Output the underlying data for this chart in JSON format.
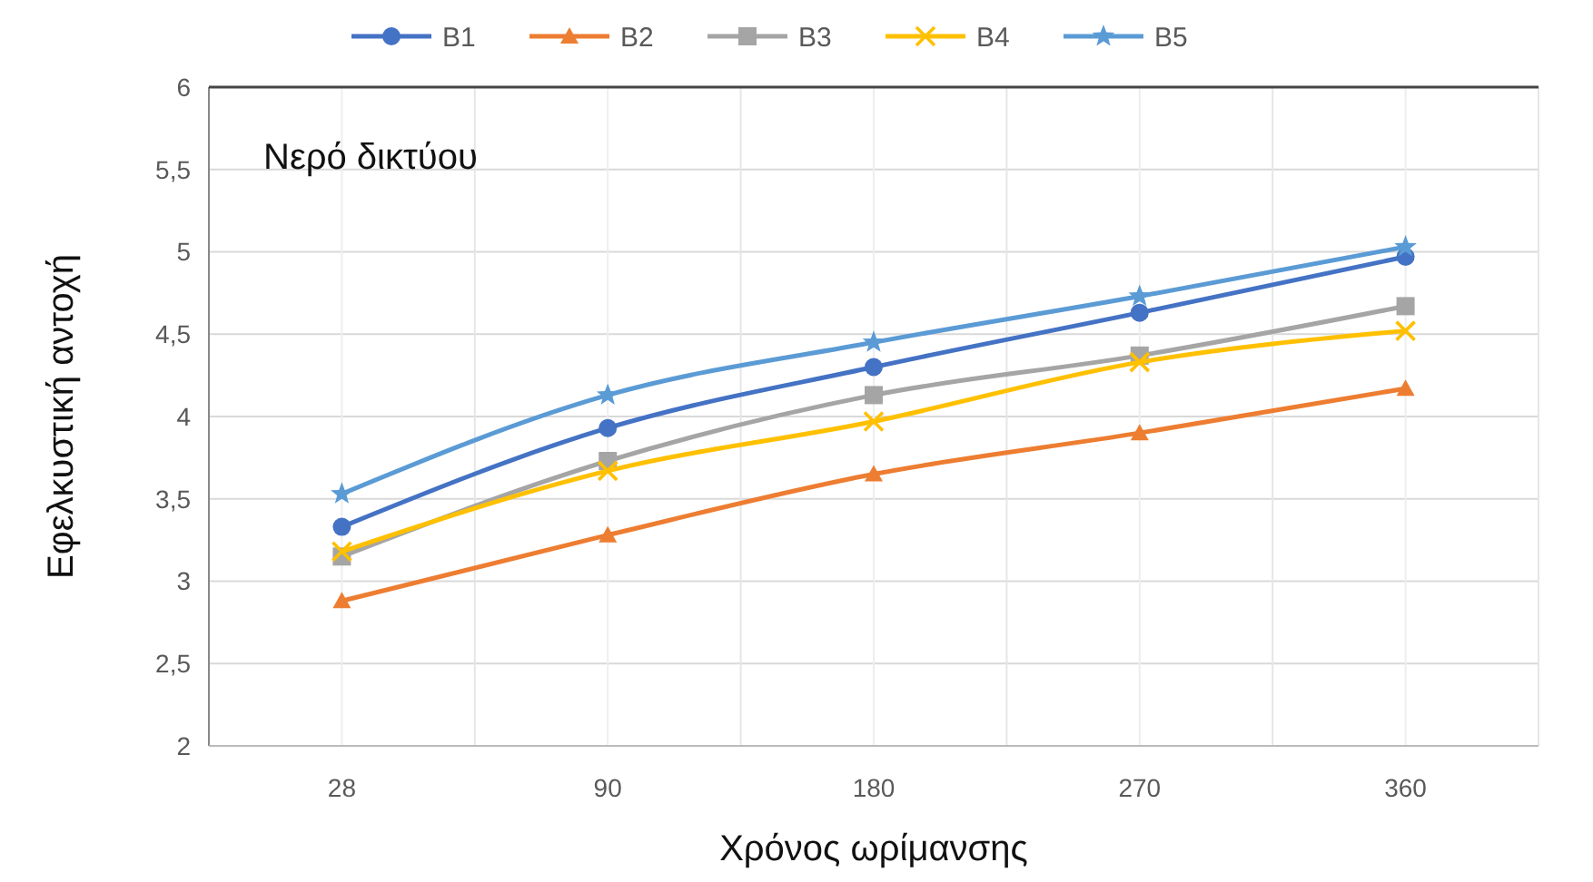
{
  "chart_data": {
    "type": "line",
    "xlabel": "Χρόνος ωρίμανσης",
    "ylabel": "Εφελκυστική αντοχή",
    "annotations": [
      "Νερό δικτύου"
    ],
    "categories": [
      "28",
      "90",
      "180",
      "270",
      "360"
    ],
    "ylim": [
      2,
      6
    ],
    "yticks": [
      2,
      {
        "value": 2.5,
        "label": "2,5"
      },
      3,
      {
        "value": 3.5,
        "label": "3,5"
      },
      4,
      {
        "value": 4.5,
        "label": "4,5"
      },
      5,
      {
        "value": 5.5,
        "label": "5,5"
      },
      6
    ],
    "grid": true,
    "legend": "top",
    "series": [
      {
        "name": "B1",
        "color": "#4472c4",
        "marker": "circle",
        "values": [
          3.33,
          3.93,
          4.3,
          4.63,
          4.97
        ]
      },
      {
        "name": "B2",
        "color": "#ed7d31",
        "marker": "triangle",
        "values": [
          2.88,
          3.28,
          3.65,
          3.9,
          4.17
        ]
      },
      {
        "name": "B3",
        "color": "#a5a5a5",
        "marker": "square",
        "values": [
          3.15,
          3.73,
          4.13,
          4.37,
          4.67
        ]
      },
      {
        "name": "B4",
        "color": "#ffc000",
        "marker": "cross",
        "values": [
          3.18,
          3.67,
          3.97,
          4.33,
          4.52
        ]
      },
      {
        "name": "B5",
        "color": "#5b9bd5",
        "marker": "star",
        "values": [
          3.53,
          4.13,
          4.45,
          4.73,
          5.03
        ]
      }
    ]
  }
}
